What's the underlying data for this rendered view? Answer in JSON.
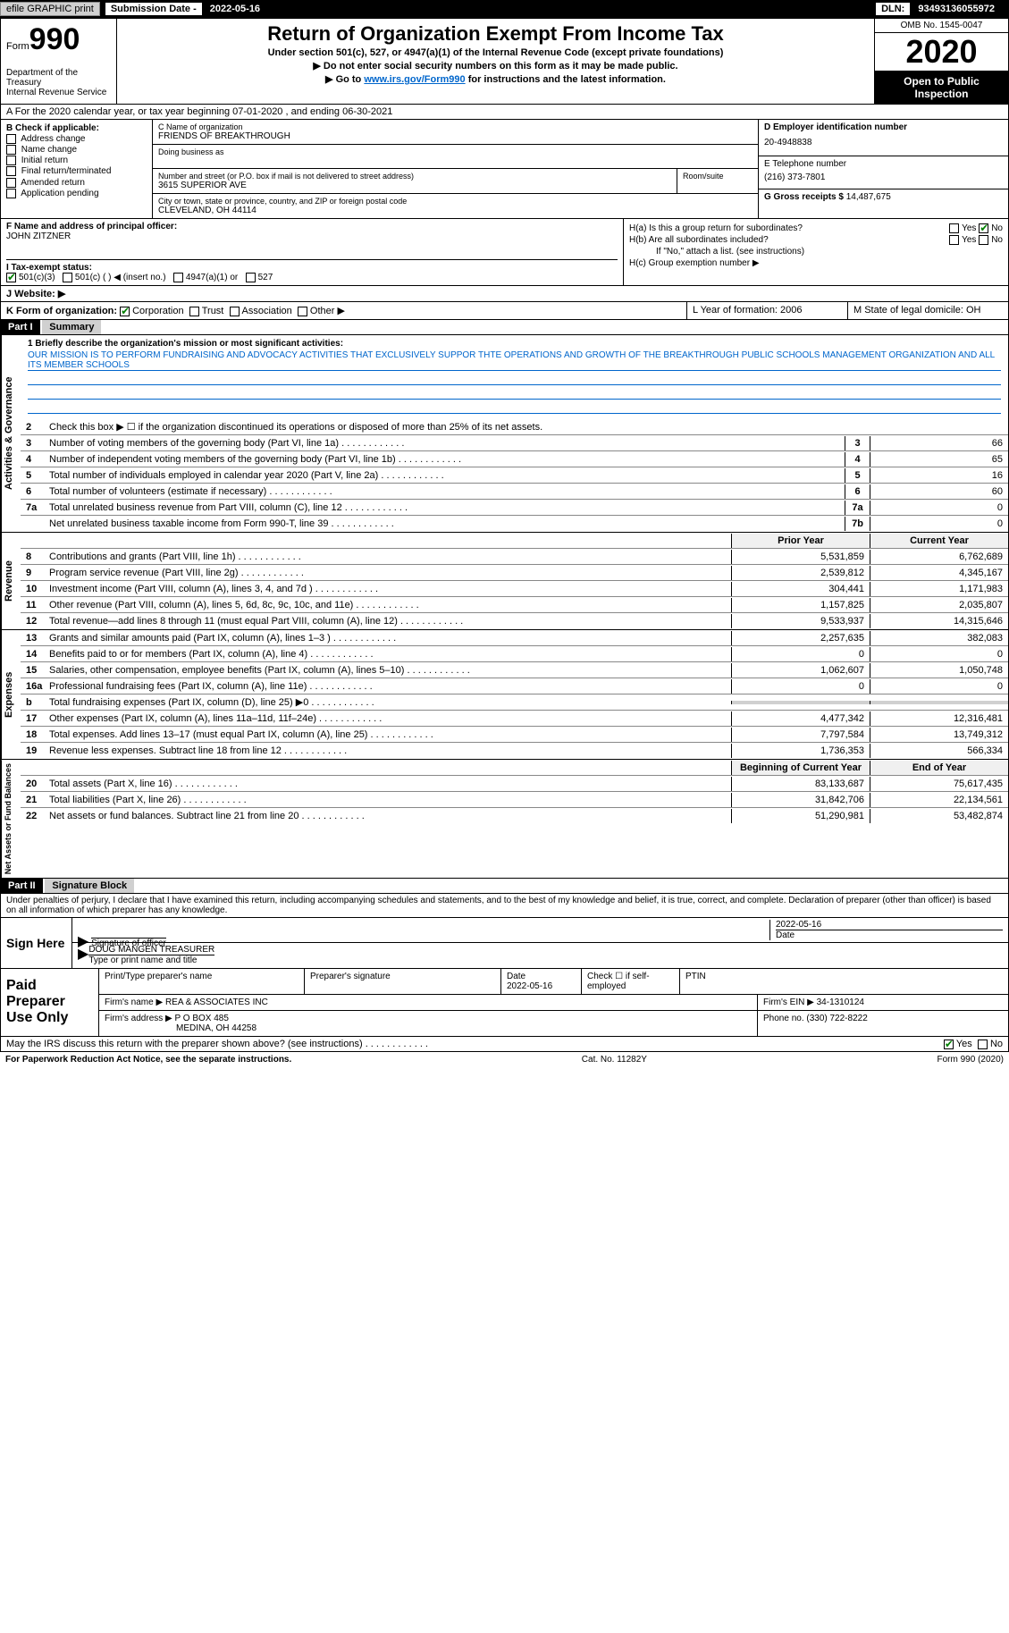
{
  "topbar": {
    "efile": "efile GRAPHIC print",
    "sub_lbl": "Submission Date - ",
    "sub_date": "2022-05-16",
    "dln_lbl": "DLN: ",
    "dln": "93493136055972"
  },
  "header": {
    "form": "Form",
    "num": "990",
    "dept": "Department of the Treasury\nInternal Revenue Service",
    "title": "Return of Organization Exempt From Income Tax",
    "sub1": "Under section 501(c), 527, or 4947(a)(1) of the Internal Revenue Code (except private foundations)",
    "sub2": "▶ Do not enter social security numbers on this form as it may be made public.",
    "sub3_a": "▶ Go to ",
    "sub3_link": "www.irs.gov/Form990",
    "sub3_b": " for instructions and the latest information.",
    "omb": "OMB No. 1545-0047",
    "year": "2020",
    "inspect": "Open to Public Inspection"
  },
  "rowA": "A For the 2020 calendar year, or tax year beginning 07-01-2020    , and ending 06-30-2021",
  "colB": {
    "hdr": "B Check if applicable:",
    "items": [
      "Address change",
      "Name change",
      "Initial return",
      "Final return/terminated",
      "Amended return",
      "Application pending"
    ]
  },
  "colC": {
    "name_lbl": "C Name of organization",
    "name": "FRIENDS OF BREAKTHROUGH",
    "dba_lbl": "Doing business as",
    "addr_lbl": "Number and street (or P.O. box if mail is not delivered to street address)",
    "room_lbl": "Room/suite",
    "addr": "3615 SUPERIOR AVE",
    "city_lbl": "City or town, state or province, country, and ZIP or foreign postal code",
    "city": "CLEVELAND, OH  44114"
  },
  "colD": {
    "ein_lbl": "D Employer identification number",
    "ein": "20-4948838",
    "tel_lbl": "E Telephone number",
    "tel": "(216) 373-7801",
    "gross_lbl": "G Gross receipts $ ",
    "gross": "14,487,675"
  },
  "colF": {
    "lbl": "F  Name and address of principal officer:",
    "name": "JOHN ZITZNER"
  },
  "colH": {
    "ha": "H(a)  Is this a group return for subordinates?",
    "hb": "H(b)  Are all subordinates included?",
    "hb_note": "If \"No,\" attach a list. (see instructions)",
    "hc": "H(c)  Group exemption number ▶",
    "yes": "Yes",
    "no": "No"
  },
  "rowI": {
    "lbl": "I     Tax-exempt status:",
    "opts": [
      "501(c)(3)",
      "501(c) (  ) ◀ (insert no.)",
      "4947(a)(1) or",
      "527"
    ]
  },
  "rowJ": "J    Website: ▶",
  "rowK": {
    "lbl": "K Form of organization:",
    "opts": [
      "Corporation",
      "Trust",
      "Association",
      "Other ▶"
    ],
    "L": "L Year of formation: 2006",
    "M": "M State of legal domicile: OH"
  },
  "part1": {
    "hdr": "Part I",
    "title": "Summary",
    "q1": "1  Briefly describe the organization's mission or most significant activities:",
    "mission": "OUR MISSION IS TO PERFORM FUNDRAISING AND ADVOCACY ACTIVITIES THAT EXCLUSIVELY SUPPOR THTE OPERATIONS AND GROWTH OF THE BREAKTHROUGH PUBLIC SCHOOLS MANAGEMENT ORGANIZATION AND ALL ITS MEMBER SCHOOLS",
    "q2": "Check this box ▶ ☐  if the organization discontinued its operations or disposed of more than 25% of its net assets.",
    "side1": "Activities & Governance",
    "side2": "Revenue",
    "side3": "Expenses",
    "side4": "Net Assets or Fund Balances",
    "lines_gov": [
      {
        "n": "3",
        "t": "Number of voting members of the governing body (Part VI, line 1a)",
        "b": "3",
        "v": "66"
      },
      {
        "n": "4",
        "t": "Number of independent voting members of the governing body (Part VI, line 1b)",
        "b": "4",
        "v": "65"
      },
      {
        "n": "5",
        "t": "Total number of individuals employed in calendar year 2020 (Part V, line 2a)",
        "b": "5",
        "v": "16"
      },
      {
        "n": "6",
        "t": "Total number of volunteers (estimate if necessary)",
        "b": "6",
        "v": "60"
      },
      {
        "n": "7a",
        "t": "Total unrelated business revenue from Part VIII, column (C), line 12",
        "b": "7a",
        "v": "0"
      },
      {
        "n": "",
        "t": "Net unrelated business taxable income from Form 990-T, line 39",
        "b": "7b",
        "v": "0"
      }
    ],
    "prior_hdr": "Prior Year",
    "curr_hdr": "Current Year",
    "lines_rev": [
      {
        "n": "8",
        "t": "Contributions and grants (Part VIII, line 1h)",
        "p": "5,531,859",
        "c": "6,762,689"
      },
      {
        "n": "9",
        "t": "Program service revenue (Part VIII, line 2g)",
        "p": "2,539,812",
        "c": "4,345,167"
      },
      {
        "n": "10",
        "t": "Investment income (Part VIII, column (A), lines 3, 4, and 7d )",
        "p": "304,441",
        "c": "1,171,983"
      },
      {
        "n": "11",
        "t": "Other revenue (Part VIII, column (A), lines 5, 6d, 8c, 9c, 10c, and 11e)",
        "p": "1,157,825",
        "c": "2,035,807"
      },
      {
        "n": "12",
        "t": "Total revenue—add lines 8 through 11 (must equal Part VIII, column (A), line 12)",
        "p": "9,533,937",
        "c": "14,315,646"
      }
    ],
    "lines_exp": [
      {
        "n": "13",
        "t": "Grants and similar amounts paid (Part IX, column (A), lines 1–3 )",
        "p": "2,257,635",
        "c": "382,083"
      },
      {
        "n": "14",
        "t": "Benefits paid to or for members (Part IX, column (A), line 4)",
        "p": "0",
        "c": "0"
      },
      {
        "n": "15",
        "t": "Salaries, other compensation, employee benefits (Part IX, column (A), lines 5–10)",
        "p": "1,062,607",
        "c": "1,050,748"
      },
      {
        "n": "16a",
        "t": "Professional fundraising fees (Part IX, column (A), line 11e)",
        "p": "0",
        "c": "0"
      },
      {
        "n": "b",
        "t": "Total fundraising expenses (Part IX, column (D), line 25) ▶0",
        "p": "",
        "c": "",
        "gray": true
      },
      {
        "n": "17",
        "t": "Other expenses (Part IX, column (A), lines 11a–11d, 11f–24e)",
        "p": "4,477,342",
        "c": "12,316,481"
      },
      {
        "n": "18",
        "t": "Total expenses. Add lines 13–17 (must equal Part IX, column (A), line 25)",
        "p": "7,797,584",
        "c": "13,749,312"
      },
      {
        "n": "19",
        "t": "Revenue less expenses. Subtract line 18 from line 12",
        "p": "1,736,353",
        "c": "566,334"
      }
    ],
    "beg_hdr": "Beginning of Current Year",
    "end_hdr": "End of Year",
    "lines_net": [
      {
        "n": "20",
        "t": "Total assets (Part X, line 16)",
        "p": "83,133,687",
        "c": "75,617,435"
      },
      {
        "n": "21",
        "t": "Total liabilities (Part X, line 26)",
        "p": "31,842,706",
        "c": "22,134,561"
      },
      {
        "n": "22",
        "t": "Net assets or fund balances. Subtract line 21 from line 20",
        "p": "51,290,981",
        "c": "53,482,874"
      }
    ]
  },
  "part2": {
    "hdr": "Part II",
    "title": "Signature Block",
    "decl": "Under penalties of perjury, I declare that I have examined this return, including accompanying schedules and statements, and to the best of my knowledge and belief, it is true, correct, and complete. Declaration of preparer (other than officer) is based on all information of which preparer has any knowledge.",
    "sign_here": "Sign Here",
    "sig_officer": "Signature of officer",
    "sig_date": "2022-05-16",
    "date_lbl": "Date",
    "officer": "DOUG MANGEN  TREASURER",
    "officer_lbl": "Type or print name and title",
    "paid": "Paid Preparer Use Only",
    "prep_name_lbl": "Print/Type preparer's name",
    "prep_sig_lbl": "Preparer's signature",
    "prep_date": "2022-05-16",
    "self_emp": "Check ☐ if self-employed",
    "ptin": "PTIN",
    "firm_name_lbl": "Firm's name    ▶",
    "firm_name": "REA & ASSOCIATES INC",
    "firm_ein_lbl": "Firm's EIN ▶",
    "firm_ein": "34-1310124",
    "firm_addr_lbl": "Firm's address ▶",
    "firm_addr1": "P O BOX 485",
    "firm_addr2": "MEDINA, OH  44258",
    "phone_lbl": "Phone no. ",
    "phone": "(330) 722-8222",
    "discuss": "May the IRS discuss this return with the preparer shown above? (see instructions)"
  },
  "footer": {
    "left": "For Paperwork Reduction Act Notice, see the separate instructions.",
    "mid": "Cat. No. 11282Y",
    "right": "Form 990 (2020)"
  }
}
